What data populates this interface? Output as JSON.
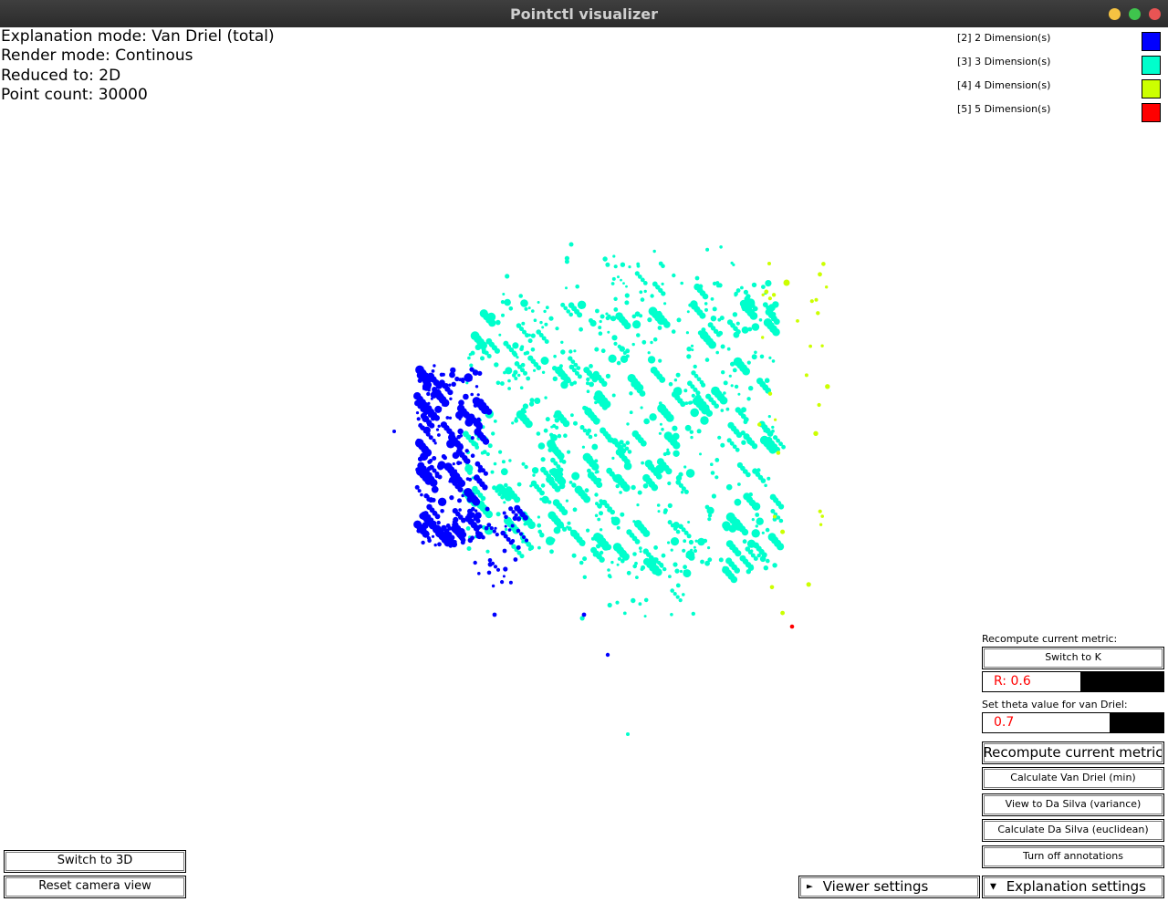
{
  "window": {
    "title": "Pointctl visualizer"
  },
  "info": {
    "lines": [
      "Explanation mode: Van Driel (total)",
      "Render mode: Continous",
      "Reduced to: 2D",
      "Point count: 30000"
    ]
  },
  "legend": {
    "items": [
      {
        "label": "[2] 2 Dimension(s)",
        "color": "#0000ff"
      },
      {
        "label": "[3] 3 Dimension(s)",
        "color": "#00ffcc"
      },
      {
        "label": "[4] 4 Dimension(s)",
        "color": "#ccff00"
      },
      {
        "label": "[5] 5 Dimension(s)",
        "color": "#ff0000"
      }
    ]
  },
  "controls": {
    "recompute_label": "Recompute current metric:",
    "switch_k": "Switch to K",
    "r_value": "R: 0.6",
    "r_fill": 0.54,
    "theta_label": "Set theta value for van Driel:",
    "theta_value": "0.7",
    "theta_fill": 0.7,
    "recompute_button": "Recompute current metric",
    "van_driel_min": "Calculate Van Driel (min)",
    "da_silva_variance": "View to Da Silva (variance)",
    "da_silva_euclidean": "Calculate Da Silva (euclidean)",
    "annotations": "Turn off annotations",
    "viewer_settings": "Viewer settings",
    "explanation_settings": "Explanation settings"
  },
  "camera": {
    "switch_3d": "Switch to 3D",
    "reset": "Reset camera view"
  }
}
